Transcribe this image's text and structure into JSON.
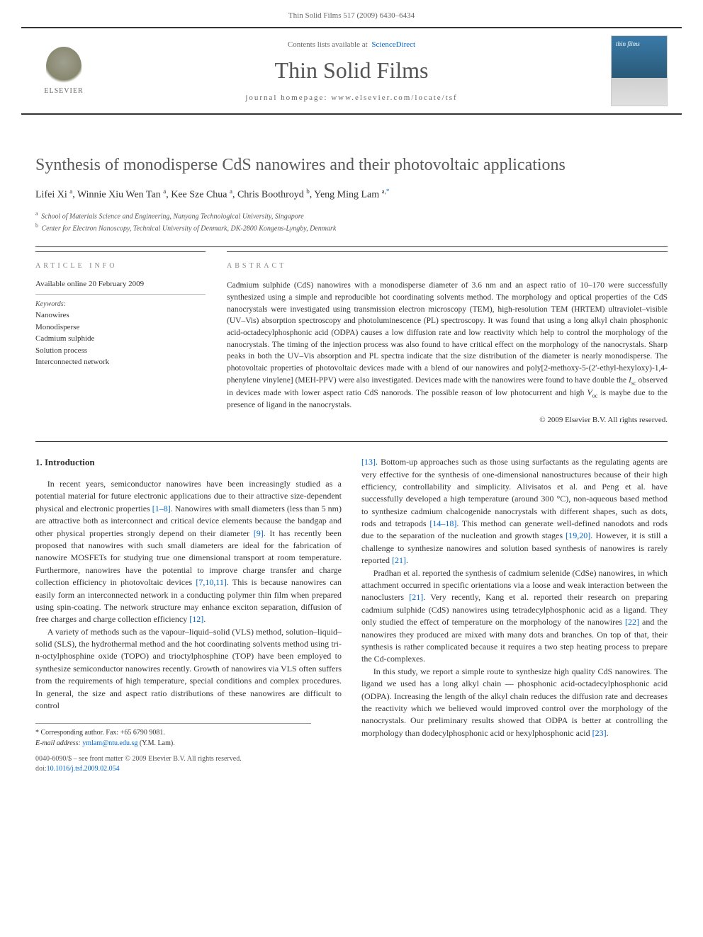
{
  "header": {
    "running_head": "Thin Solid Films 517 (2009) 6430–6434"
  },
  "masthead": {
    "publisher": "ELSEVIER",
    "contents_prefix": "Contents lists available at",
    "contents_link": "ScienceDirect",
    "journal": "Thin Solid Films",
    "homepage_prefix": "journal homepage:",
    "homepage": "www.elsevier.com/locate/tsf",
    "cover_label": "thin films"
  },
  "article": {
    "title": "Synthesis of monodisperse CdS nanowires and their photovoltaic applications",
    "authors_html": "Lifei Xi <sup>a</sup>, Winnie Xiu Wen Tan <sup>a</sup>, Kee Sze Chua <sup>a</sup>, Chris Boothroyd <sup>b</sup>, Yeng Ming Lam <sup>a,</sup><sup class=\"corr\">*</sup>",
    "affiliations": [
      {
        "sup": "a",
        "text": "School of Materials Science and Engineering, Nanyang Technological University, Singapore"
      },
      {
        "sup": "b",
        "text": "Center for Electron Nanoscopy, Technical University of Denmark, DK-2800 Kongens-Lyngby, Denmark"
      }
    ]
  },
  "article_info": {
    "section_label": "ARTICLE INFO",
    "available_online": "Available online 20 February 2009",
    "keywords_label": "Keywords:",
    "keywords": [
      "Nanowires",
      "Monodisperse",
      "Cadmium sulphide",
      "Solution process",
      "Interconnected network"
    ]
  },
  "abstract": {
    "section_label": "ABSTRACT",
    "text": "Cadmium sulphide (CdS) nanowires with a monodisperse diameter of 3.6 nm and an aspect ratio of 10–170 were successfully synthesized using a simple and reproducible hot coordinating solvents method. The morphology and optical properties of the CdS nanocrystals were investigated using transmission electron microscopy (TEM), high-resolution TEM (HRTEM) ultraviolet–visible (UV–Vis) absorption spectroscopy and photoluminescence (PL) spectroscopy. It was found that using a long alkyl chain phosphonic acid-octadecylphosphonic acid (ODPA) causes a low diffusion rate and low reactivity which help to control the morphology of the nanocrystals. The timing of the injection process was also found to have critical effect on the morphology of the nanocrystals. Sharp peaks in both the UV–Vis absorption and PL spectra indicate that the size distribution of the diameter is nearly monodisperse. The photovoltaic properties of photovoltaic devices made with a blend of our nanowires and poly[2-methoxy-5-(2′-ethyl-hexyloxy)-1,4-phenylene vinylene] (MEH-PPV) were also investigated. Devices made with the nanowires were found to have double the Isc observed in devices made with lower aspect ratio CdS nanorods. The possible reason of low photocurrent and high Voc is maybe due to the presence of ligand in the nanocrystals.",
    "copyright": "© 2009 Elsevier B.V. All rights reserved."
  },
  "body": {
    "section_heading": "1. Introduction",
    "p1": "In recent years, semiconductor nanowires have been increasingly studied as a potential material for future electronic applications due to their attractive size-dependent physical and electronic properties [1–8]. Nanowires with small diameters (less than 5 nm) are attractive both as interconnect and critical device elements because the bandgap and other physical properties strongly depend on their diameter [9]. It has recently been proposed that nanowires with such small diameters are ideal for the fabrication of nanowire MOSFETs for studying true one dimensional transport at room temperature. Furthermore, nanowires have the potential to improve charge transfer and charge collection efficiency in photovoltaic devices [7,10,11]. This is because nanowires can easily form an interconnected network in a conducting polymer thin film when prepared using spin-coating. The network structure may enhance exciton separation, diffusion of free charges and charge collection efficiency [12].",
    "p2": "A variety of methods such as the vapour–liquid–solid (VLS) method, solution–liquid–solid (SLS), the hydrothermal method and the hot coordinating solvents method using tri-n-octylphosphine oxide (TOPO) and trioctylphosphine (TOP) have been employed to synthesize semiconductor nanowires recently. Growth of nanowires via VLS often suffers from the requirements of high temperature, special conditions and complex procedures. In general, the size and aspect ratio distributions of these nanowires are difficult to control",
    "p3": "[13]. Bottom-up approaches such as those using surfactants as the regulating agents are very effective for the synthesis of one-dimensional nanostructures because of their high efficiency, controllability and simplicity. Alivisatos et al. and Peng et al. have successfully developed a high temperature (around 300 °C), non-aqueous based method to synthesize cadmium chalcogenide nanocrystals with different shapes, such as dots, rods and tetrapods [14–18]. This method can generate well-defined nanodots and rods due to the separation of the nucleation and growth stages [19,20]. However, it is still a challenge to synthesize nanowires and solution based synthesis of nanowires is rarely reported [21].",
    "p4": "Pradhan et al. reported the synthesis of cadmium selenide (CdSe) nanowires, in which attachment occurred in specific orientations via a loose and weak interaction between the nanoclusters [21]. Very recently, Kang et al. reported their research on preparing cadmium sulphide (CdS) nanowires using tetradecylphosphonic acid as a ligand. They only studied the effect of temperature on the morphology of the nanowires [22] and the nanowires they produced are mixed with many dots and branches. On top of that, their synthesis is rather complicated because it requires a two step heating process to prepare the Cd-complexes.",
    "p5": "In this study, we report a simple route to synthesize high quality CdS nanowires. The ligand we used has a long alkyl chain — phosphonic acid-octadecylphosphonic acid (ODPA). Increasing the length of the alkyl chain reduces the diffusion rate and decreases the reactivity which we believed would improved control over the morphology of the nanocrystals. Our preliminary results showed that ODPA is better at controlling the morphology than dodecylphosphonic acid or hexylphosphonic acid [23]."
  },
  "footnote": {
    "corresponding": "* Corresponding author. Fax: +65 6790 9081.",
    "email_label": "E-mail address:",
    "email": "ymlam@ntu.edu.sg",
    "email_suffix": "(Y.M. Lam)."
  },
  "footer": {
    "issn_line": "0040-6090/$ – see front matter © 2009 Elsevier B.V. All rights reserved.",
    "doi_label": "doi:",
    "doi": "10.1016/j.tsf.2009.02.054"
  },
  "refs": {
    "r1_8": "[1–8]",
    "r9": "[9]",
    "r7_10_11": "[7,10,11]",
    "r12": "[12]",
    "r13": "[13]",
    "r14_18": "[14–18]",
    "r19_20": "[19,20]",
    "r21": "[21]",
    "r21b": "[21]",
    "r22": "[22]",
    "r23": "[23]"
  }
}
